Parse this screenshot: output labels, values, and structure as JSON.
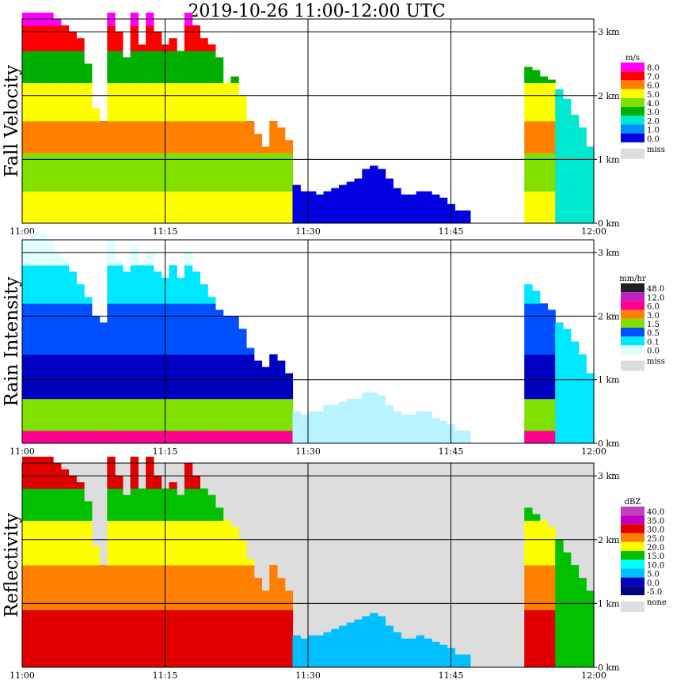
{
  "title": "2019-10-26   11:00-12:00 UTC",
  "chart_data": [
    {
      "type": "heatmap",
      "title": "Fall Velocity",
      "unit": "m/s",
      "x_ticks": [
        "11:00",
        "11:15",
        "11:30",
        "11:45",
        "12:00"
      ],
      "y_ticks": [
        "0 km",
        "1 km",
        "2 km",
        "3 km"
      ],
      "legend": [
        {
          "label": "8.0",
          "color": "#ff00ff"
        },
        {
          "label": "7.0",
          "color": "#ff0000"
        },
        {
          "label": "6.0",
          "color": "#ff8000"
        },
        {
          "label": "5.0",
          "color": "#ffff00"
        },
        {
          "label": "4.0",
          "color": "#80e000"
        },
        {
          "label": "3.0",
          "color": "#00b000"
        },
        {
          "label": "2.0",
          "color": "#00e8d0"
        },
        {
          "label": "1.0",
          "color": "#0090ff"
        },
        {
          "label": "0.0",
          "color": "#0000e0"
        },
        {
          "label": "miss",
          "color": "#dddddd"
        }
      ],
      "background": "#ffffff",
      "mask": {
        "tops": [
          3.3,
          3.3,
          3.3,
          3.3,
          3.2,
          3.1,
          3.0,
          2.9,
          2.5,
          1.8,
          1.6,
          3.3,
          3.0,
          2.6,
          3.3,
          2.8,
          3.3,
          3.0,
          2.8,
          2.9,
          2.7,
          3.3,
          3.1,
          2.9,
          2.8,
          2.6,
          2.2,
          2.3,
          2.0,
          1.6,
          1.4,
          1.2,
          1.6,
          1.5,
          1.3,
          0.6,
          0.5,
          0.5,
          0.45,
          0.5,
          0.55,
          0.6,
          0.65,
          0.7,
          0.85,
          0.9,
          0.85,
          0.7,
          0.55,
          0.45,
          0.45,
          0.5,
          0.5,
          0.45,
          0.4,
          0.3,
          0.2,
          0.2,
          0.0,
          0.0,
          0.0,
          0.0,
          0.0,
          0.0,
          0.0,
          2.45,
          2.4,
          2.3,
          2.25,
          2.1,
          1.95,
          1.7,
          1.5,
          1.2
        ],
        "ramp": [
          {
            "h": 0.0,
            "c": "#ffff00"
          },
          {
            "h": 0.5,
            "c": "#80e000"
          },
          {
            "h": 1.0,
            "c": "#ff8000"
          },
          {
            "h": 1.6,
            "c": "#ffff00"
          },
          {
            "h": 2.2,
            "c": "#00b000"
          },
          {
            "h": 2.7,
            "c": "#ff0000"
          },
          {
            "h": 3.1,
            "c": "#ff00ff"
          }
        ],
        "overrides": [
          {
            "from": 35,
            "to": 64,
            "c": "#0000e0"
          },
          {
            "from": 69,
            "to": 73,
            "c": "#00e8d0"
          }
        ]
      }
    },
    {
      "type": "heatmap",
      "title": "Rain Intensity",
      "unit": "mm/hr",
      "x_ticks": [
        "11:00",
        "11:15",
        "11:30",
        "11:45",
        "12:00"
      ],
      "y_ticks": [
        "0 km",
        "1 km",
        "2 km",
        "3 km"
      ],
      "legend": [
        {
          "label": "48.0",
          "color": "#202020"
        },
        {
          "label": "12.0",
          "color": "#c020c0"
        },
        {
          "label": "6.0",
          "color": "#ff0090"
        },
        {
          "label": "3.0",
          "color": "#ff8000"
        },
        {
          "label": "1.5",
          "color": "#80e000"
        },
        {
          "label": "0.5",
          "color": "#0050ff"
        },
        {
          "label": "0.1",
          "color": "#00e8ff"
        },
        {
          "label": "0.0",
          "color": "#e0ffff"
        },
        {
          "label": "miss",
          "color": "#dddddd"
        }
      ],
      "background": "#ffffff",
      "mask": {
        "tops": [
          3.2,
          3.3,
          3.3,
          3.2,
          3.0,
          2.9,
          2.7,
          2.5,
          2.3,
          2.0,
          1.9,
          3.2,
          2.9,
          2.7,
          3.1,
          2.8,
          3.0,
          2.7,
          2.6,
          2.8,
          2.6,
          3.0,
          2.7,
          2.5,
          2.3,
          2.1,
          2.0,
          2.0,
          1.8,
          1.5,
          1.3,
          1.2,
          1.4,
          1.3,
          1.1,
          0.5,
          0.45,
          0.5,
          0.5,
          0.6,
          0.6,
          0.65,
          0.7,
          0.7,
          0.8,
          0.8,
          0.75,
          0.6,
          0.5,
          0.45,
          0.45,
          0.5,
          0.5,
          0.4,
          0.35,
          0.3,
          0.2,
          0.2,
          0.0,
          0.0,
          0.0,
          0.0,
          0.0,
          0.0,
          0.0,
          2.5,
          2.4,
          2.2,
          2.1,
          1.9,
          1.8,
          1.6,
          1.4,
          1.1
        ],
        "ramp": [
          {
            "h": 0.0,
            "c": "#ff0090"
          },
          {
            "h": 0.12,
            "c": "#80e000"
          },
          {
            "h": 0.7,
            "c": "#0000c0"
          },
          {
            "h": 1.4,
            "c": "#0050ff"
          },
          {
            "h": 2.2,
            "c": "#00e8ff"
          },
          {
            "h": 2.8,
            "c": "#e0ffff"
          }
        ],
        "overrides": [
          {
            "from": 35,
            "to": 64,
            "c": "#b8f4ff"
          },
          {
            "from": 69,
            "to": 73,
            "c": "#00e8ff"
          }
        ]
      }
    },
    {
      "type": "heatmap",
      "title": "Reflectivity",
      "unit": "dBZ",
      "x_ticks": [
        "11:00",
        "11:15",
        "11:30",
        "11:45",
        "12:00"
      ],
      "y_ticks": [
        "0 km",
        "1 km",
        "2 km",
        "3 km"
      ],
      "legend": [
        {
          "label": "40.0",
          "color": "#c040c0"
        },
        {
          "label": "35.0",
          "color": "#c000c0"
        },
        {
          "label": "30.0",
          "color": "#e00000"
        },
        {
          "label": "25.0",
          "color": "#ff8000"
        },
        {
          "label": "20.0",
          "color": "#ffff00"
        },
        {
          "label": "15.0",
          "color": "#00c000"
        },
        {
          "label": "10.0",
          "color": "#00ffff"
        },
        {
          "label": "5.0",
          "color": "#00c0ff"
        },
        {
          "label": "0.0",
          "color": "#0000c0"
        },
        {
          "label": "-5.0",
          "color": "#000080"
        },
        {
          "label": "none",
          "color": "#dddddd"
        }
      ],
      "background": "#dddddd",
      "mask": {
        "tops": [
          3.3,
          3.3,
          3.3,
          3.3,
          3.2,
          3.1,
          3.0,
          2.9,
          2.6,
          1.9,
          1.6,
          3.3,
          3.0,
          2.7,
          3.3,
          2.8,
          3.3,
          3.0,
          2.8,
          2.9,
          2.7,
          3.2,
          3.0,
          2.8,
          2.7,
          2.5,
          2.3,
          2.2,
          2.0,
          1.7,
          1.4,
          1.2,
          1.6,
          1.4,
          1.2,
          0.5,
          0.45,
          0.5,
          0.5,
          0.55,
          0.6,
          0.65,
          0.7,
          0.75,
          0.8,
          0.85,
          0.8,
          0.65,
          0.55,
          0.45,
          0.45,
          0.5,
          0.45,
          0.4,
          0.35,
          0.3,
          0.2,
          0.2,
          0.0,
          0.0,
          0.0,
          0.0,
          0.0,
          0.0,
          0.0,
          2.5,
          2.4,
          2.3,
          2.2,
          2.0,
          1.8,
          1.6,
          1.4,
          1.2
        ],
        "ramp": [
          {
            "h": 0.0,
            "c": "#e00000"
          },
          {
            "h": 0.8,
            "c": "#ff8000"
          },
          {
            "h": 1.6,
            "c": "#ffff00"
          },
          {
            "h": 2.3,
            "c": "#00c000"
          },
          {
            "h": 2.8,
            "c": "#e00000"
          }
        ],
        "overrides": [
          {
            "from": 35,
            "to": 64,
            "c": "#00c0ff"
          },
          {
            "from": 69,
            "to": 73,
            "c": "#00c000"
          }
        ]
      }
    }
  ]
}
